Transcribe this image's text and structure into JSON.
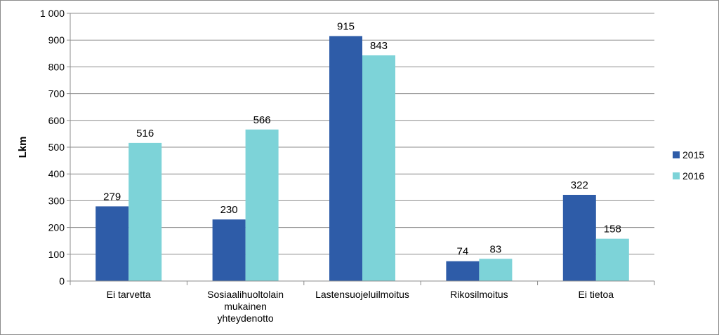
{
  "chart_data": {
    "type": "bar",
    "title": "",
    "xlabel": "",
    "ylabel": "Lkm",
    "ylim": [
      0,
      1000
    ],
    "yticks": [
      0,
      100,
      200,
      300,
      400,
      500,
      600,
      700,
      800,
      900,
      1000
    ],
    "ytick_labels": [
      "0",
      "100",
      "200",
      "300",
      "400",
      "500",
      "600",
      "700",
      "800",
      "900",
      "1 000"
    ],
    "grid": true,
    "legend_position": "right",
    "categories": [
      [
        "Ei tarvetta"
      ],
      [
        "Sosiaalihuoltolain",
        "mukainen",
        "yhteydenotto"
      ],
      [
        "Lastensuojeluilmoitus"
      ],
      [
        "Rikosilmoitus"
      ],
      [
        "Ei tietoa"
      ]
    ],
    "series": [
      {
        "name": "2015",
        "color": "#2e5ca8",
        "values": [
          279,
          230,
          915,
          74,
          322
        ]
      },
      {
        "name": "2016",
        "color": "#7dd3d8",
        "values": [
          516,
          566,
          843,
          83,
          158
        ]
      }
    ]
  }
}
